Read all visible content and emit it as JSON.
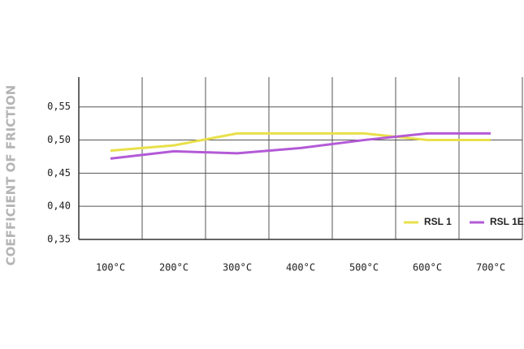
{
  "chart_data": {
    "type": "line",
    "y_label": "COEFFICIENT OF FRICTION",
    "categories": [
      "100°C",
      "200°C",
      "300°C",
      "400°C",
      "500°C",
      "600°C",
      "700°C"
    ],
    "series": [
      {
        "name": "RSL 1",
        "color": "#e8e04a",
        "values": [
          0.484,
          0.492,
          0.51,
          0.51,
          0.51,
          0.5,
          0.5
        ]
      },
      {
        "name": "RSL 1E",
        "color": "#b35ad6",
        "values": [
          0.472,
          0.483,
          0.48,
          0.488,
          0.5,
          0.51,
          0.51
        ]
      }
    ],
    "ylim": [
      0.35,
      0.595
    ],
    "yticks": [
      {
        "value": 0.35,
        "label": "0,35"
      },
      {
        "value": 0.4,
        "label": "0,40"
      },
      {
        "value": 0.45,
        "label": "0,45"
      },
      {
        "value": 0.5,
        "label": "0,50"
      },
      {
        "value": 0.55,
        "label": "0,55"
      }
    ],
    "grid": true,
    "legend": "lower right"
  }
}
